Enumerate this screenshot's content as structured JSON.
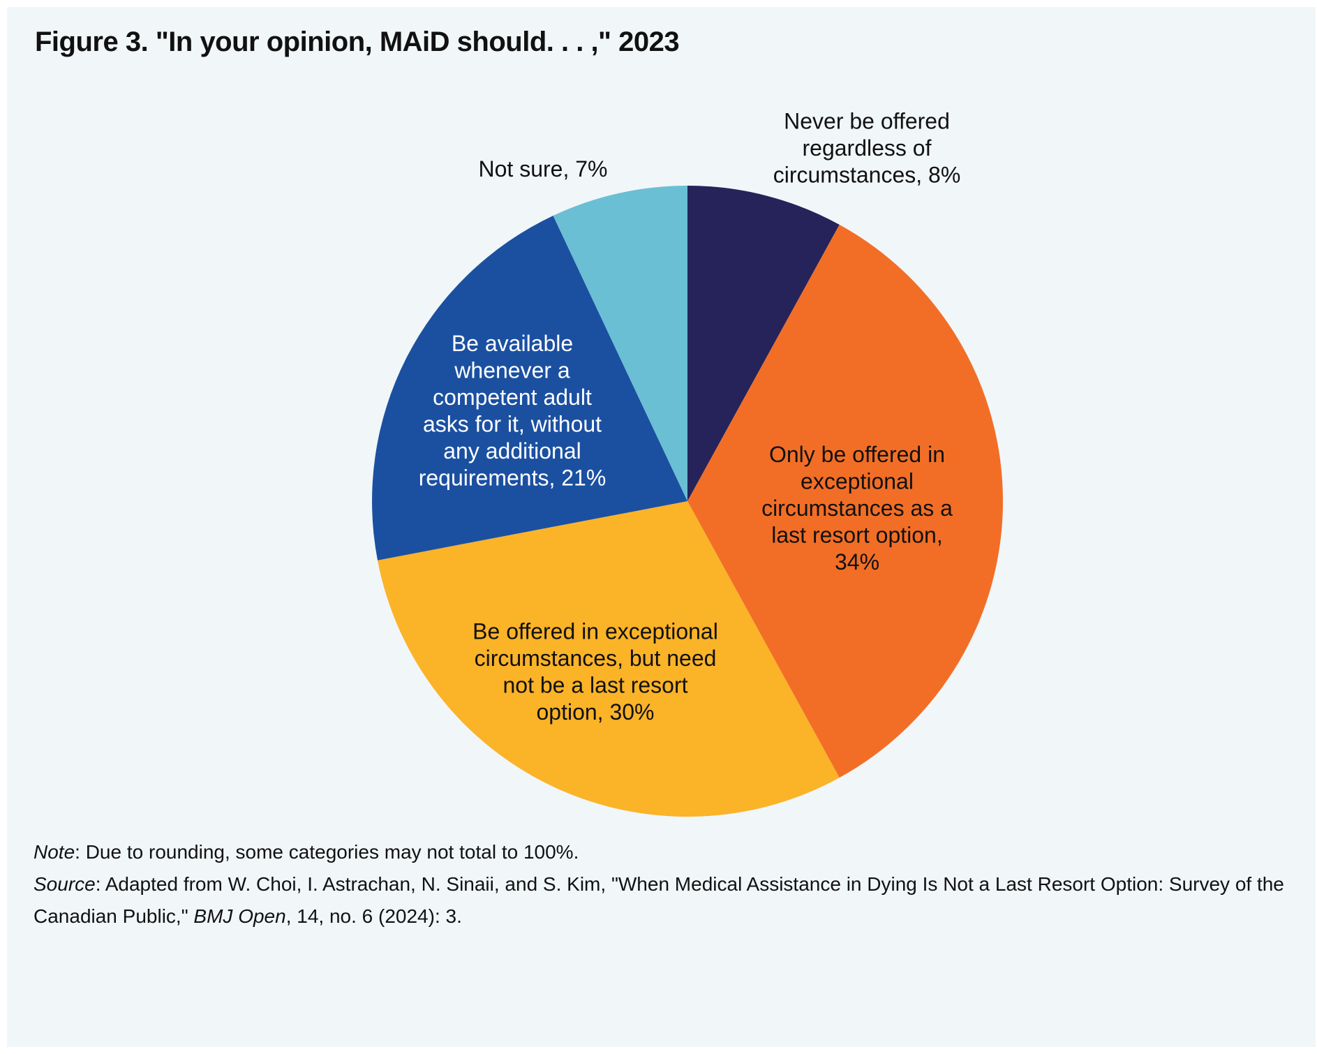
{
  "chart_data": {
    "type": "pie",
    "title": "Figure 3. \"In your opinion, MAiD should. . . ,\" 2023",
    "start": "top, clockwise",
    "slices": [
      {
        "label": "Never be offered regardless of circumstances, 8%",
        "lines": [
          "Never be offered",
          "regardless of",
          "circumstances, 8%"
        ],
        "value": 8,
        "color": "#26235a",
        "text_color": "#111111"
      },
      {
        "label": "Only be offered in exceptional circumstances as a last resort option, 34%",
        "lines": [
          "Only be offered in",
          "exceptional",
          "circumstances as a",
          "last resort option,",
          "34%"
        ],
        "value": 34,
        "color": "#f26e26",
        "text_color": "#111111"
      },
      {
        "label": "Be offered in exceptional circumstances, but need not be a last resort option, 30%",
        "lines": [
          "Be offered in exceptional",
          "circumstances, but need",
          "not be a last resort",
          "option, 30%"
        ],
        "value": 30,
        "color": "#fbb328",
        "text_color": "#111111"
      },
      {
        "label": "Be available whenever a competent adult asks for it, without any additional requirements, 21%",
        "lines": [
          "Be available",
          "whenever a",
          "competent adult",
          "asks for it, without",
          "any additional",
          "requirements, 21%"
        ],
        "value": 21,
        "color": "#1b50a1",
        "text_color": "#ffffff"
      },
      {
        "label": "Not sure, 7%",
        "lines": [
          "Not sure, 7%"
        ],
        "value": 7,
        "color": "#6abfd4",
        "text_color": "#111111"
      }
    ]
  },
  "footer": {
    "note_label": "Note",
    "note_text": ": Due to rounding, some categories may not total to 100%.",
    "source_label": "Source",
    "source_text_1": ": Adapted from W. Choi, I. Astrachan, N. Sinaii, and S. Kim, \"When Medical Assistance in Dying Is Not a Last Resort Option: Survey of the Canadian Public,\" ",
    "source_journal": "BMJ Open",
    "source_text_2": ", 14, no. 6 (2024): 3."
  }
}
